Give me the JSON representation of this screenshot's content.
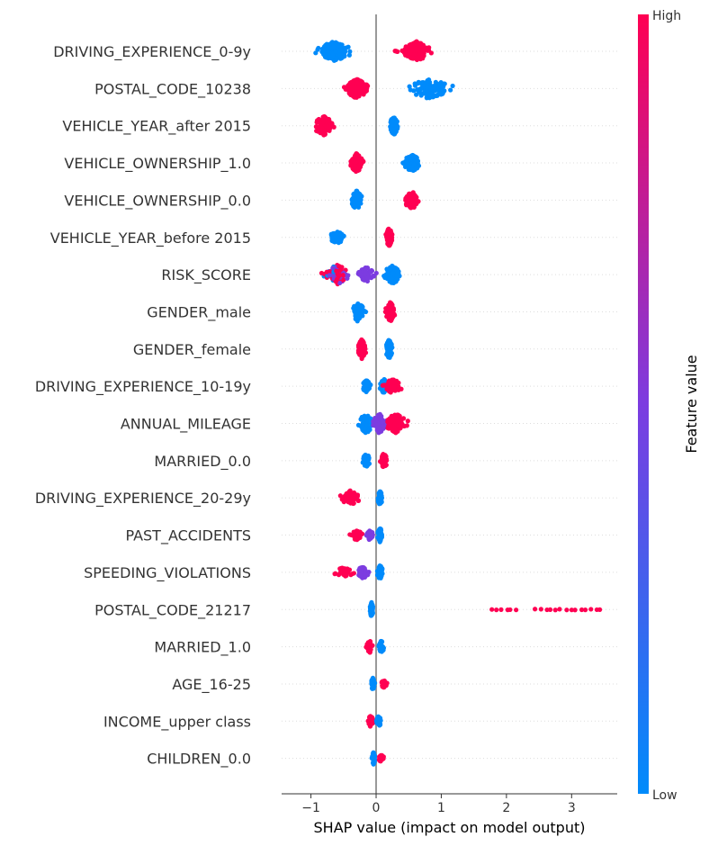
{
  "chart_data": {
    "type": "scatter",
    "subtype": "shap-beeswarm",
    "xlabel": "SHAP value (impact on model output)",
    "ylabel": "",
    "xlim": [
      -1.45,
      3.7
    ],
    "xticks": [
      -1,
      0,
      1,
      2,
      3
    ],
    "xtick_labels": [
      "−1",
      "0",
      "1",
      "2",
      "3"
    ],
    "grid": false,
    "colorbar": {
      "title": "Feature value",
      "high_label": "High",
      "low_label": "Low",
      "high_color": "#ff0052",
      "low_color": "#008bfb",
      "mid_color": "#7c3ce0"
    },
    "features": [
      {
        "name": "DRIVING_EXPERIENCE_0-9y",
        "clusters": [
          {
            "center": -0.65,
            "min": -1.2,
            "max": -0.4,
            "color": "low",
            "n": 160
          },
          {
            "center": 0.62,
            "min": 0.4,
            "max": 1.1,
            "color": "high",
            "n": 120
          },
          {
            "center": 0.3,
            "min": 0.2,
            "max": 0.4,
            "color": "high",
            "n": 4
          }
        ]
      },
      {
        "name": "POSTAL_CODE_10238",
        "clusters": [
          {
            "center": -0.3,
            "min": -0.65,
            "max": -0.1,
            "color": "high",
            "n": 170
          },
          {
            "center": 0.8,
            "min": 0.35,
            "max": 1.4,
            "color": "low",
            "n": 130
          }
        ]
      },
      {
        "name": "VEHICLE_YEAR_after 2015",
        "clusters": [
          {
            "center": -0.8,
            "min": -1.05,
            "max": -0.55,
            "color": "high",
            "n": 90
          },
          {
            "center": 0.27,
            "min": 0.18,
            "max": 0.38,
            "color": "low",
            "n": 90
          }
        ]
      },
      {
        "name": "VEHICLE_OWNERSHIP_1.0",
        "clusters": [
          {
            "center": -0.3,
            "min": -0.42,
            "max": -0.15,
            "color": "high",
            "n": 80
          },
          {
            "center": 0.55,
            "min": 0.3,
            "max": 0.75,
            "color": "low",
            "n": 70
          }
        ]
      },
      {
        "name": "VEHICLE_OWNERSHIP_0.0",
        "clusters": [
          {
            "center": -0.3,
            "min": -0.42,
            "max": -0.15,
            "color": "low",
            "n": 80
          },
          {
            "center": 0.55,
            "min": 0.3,
            "max": 0.7,
            "color": "high",
            "n": 70
          }
        ]
      },
      {
        "name": "VEHICLE_YEAR_before 2015",
        "clusters": [
          {
            "center": -0.6,
            "min": -0.72,
            "max": -0.35,
            "color": "low",
            "n": 50
          },
          {
            "center": 0.2,
            "min": 0.12,
            "max": 0.28,
            "color": "high",
            "n": 80
          }
        ]
      },
      {
        "name": "RISK_SCORE",
        "clusters": [
          {
            "center": -0.6,
            "min": -0.95,
            "max": -0.3,
            "color": "mixed-high",
            "n": 90
          },
          {
            "center": -0.15,
            "min": -0.35,
            "max": 0.05,
            "color": "mid",
            "n": 60
          },
          {
            "center": 0.25,
            "min": 0.05,
            "max": 0.45,
            "color": "low",
            "n": 90
          }
        ]
      },
      {
        "name": "GENDER_male",
        "clusters": [
          {
            "center": -0.28,
            "min": -0.42,
            "max": -0.12,
            "color": "low",
            "n": 80
          },
          {
            "center": 0.22,
            "min": 0.12,
            "max": 0.35,
            "color": "high",
            "n": 80
          }
        ]
      },
      {
        "name": "GENDER_female",
        "clusters": [
          {
            "center": -0.22,
            "min": -0.32,
            "max": -0.12,
            "color": "high",
            "n": 80
          },
          {
            "center": 0.2,
            "min": 0.12,
            "max": 0.3,
            "color": "low",
            "n": 80
          }
        ]
      },
      {
        "name": "DRIVING_EXPERIENCE_10-19y",
        "clusters": [
          {
            "center": -0.15,
            "min": -0.28,
            "max": -0.05,
            "color": "low",
            "n": 50
          },
          {
            "center": 0.12,
            "min": 0.0,
            "max": 0.2,
            "color": "low",
            "n": 60
          },
          {
            "center": 0.25,
            "min": 0.05,
            "max": 0.5,
            "color": "high",
            "n": 60
          }
        ]
      },
      {
        "name": "ANNUAL_MILEAGE",
        "clusters": [
          {
            "center": -0.15,
            "min": -0.4,
            "max": 0.0,
            "color": "low",
            "n": 90
          },
          {
            "center": 0.05,
            "min": -0.1,
            "max": 0.2,
            "color": "mid",
            "n": 90
          },
          {
            "center": 0.3,
            "min": 0.15,
            "max": 0.65,
            "color": "high",
            "n": 80
          }
        ]
      },
      {
        "name": "MARRIED_0.0",
        "clusters": [
          {
            "center": -0.15,
            "min": -0.25,
            "max": -0.05,
            "color": "low",
            "n": 60
          },
          {
            "center": 0.12,
            "min": 0.02,
            "max": 0.2,
            "color": "high",
            "n": 60
          }
        ]
      },
      {
        "name": "DRIVING_EXPERIENCE_20-29y",
        "clusters": [
          {
            "center": -0.4,
            "min": -0.6,
            "max": -0.12,
            "color": "high",
            "n": 60
          },
          {
            "center": 0.06,
            "min": 0.0,
            "max": 0.12,
            "color": "low",
            "n": 60
          }
        ]
      },
      {
        "name": "PAST_ACCIDENTS",
        "clusters": [
          {
            "center": -0.3,
            "min": -0.45,
            "max": -0.15,
            "color": "high",
            "n": 40
          },
          {
            "center": -0.1,
            "min": -0.18,
            "max": 0.0,
            "color": "mid",
            "n": 40
          },
          {
            "center": 0.06,
            "min": 0.0,
            "max": 0.12,
            "color": "low",
            "n": 60
          }
        ]
      },
      {
        "name": "SPEEDING_VIOLATIONS",
        "clusters": [
          {
            "center": -0.5,
            "min": -0.75,
            "max": -0.3,
            "color": "high",
            "n": 40
          },
          {
            "center": -0.2,
            "min": -0.35,
            "max": -0.05,
            "color": "mid",
            "n": 50
          },
          {
            "center": 0.06,
            "min": -0.02,
            "max": 0.12,
            "color": "low",
            "n": 60
          }
        ]
      },
      {
        "name": "POSTAL_CODE_21217",
        "clusters": [
          {
            "center": -0.07,
            "min": -0.1,
            "max": -0.02,
            "color": "low",
            "n": 60
          },
          {
            "center": 1.9,
            "min": 1.78,
            "max": 2.15,
            "color": "high",
            "n": 6,
            "sparse": true
          },
          {
            "center": 2.9,
            "min": 2.45,
            "max": 3.45,
            "color": "high",
            "n": 14,
            "sparse": true
          }
        ]
      },
      {
        "name": "MARRIED_1.0",
        "clusters": [
          {
            "center": -0.1,
            "min": -0.18,
            "max": -0.02,
            "color": "high",
            "n": 50
          },
          {
            "center": 0.08,
            "min": 0.0,
            "max": 0.14,
            "color": "low",
            "n": 50
          }
        ]
      },
      {
        "name": "AGE_16-25",
        "clusters": [
          {
            "center": -0.05,
            "min": -0.1,
            "max": 0.0,
            "color": "low",
            "n": 50
          },
          {
            "center": 0.12,
            "min": 0.04,
            "max": 0.2,
            "color": "high",
            "n": 30
          }
        ]
      },
      {
        "name": "INCOME_upper class",
        "clusters": [
          {
            "center": -0.08,
            "min": -0.15,
            "max": -0.01,
            "color": "high",
            "n": 50
          },
          {
            "center": 0.04,
            "min": -0.01,
            "max": 0.1,
            "color": "low",
            "n": 50
          }
        ]
      },
      {
        "name": "CHILDREN_0.0",
        "clusters": [
          {
            "center": -0.04,
            "min": -0.08,
            "max": 0.0,
            "color": "low",
            "n": 50
          },
          {
            "center": 0.08,
            "min": 0.02,
            "max": 0.16,
            "color": "high",
            "n": 30
          }
        ]
      }
    ]
  }
}
